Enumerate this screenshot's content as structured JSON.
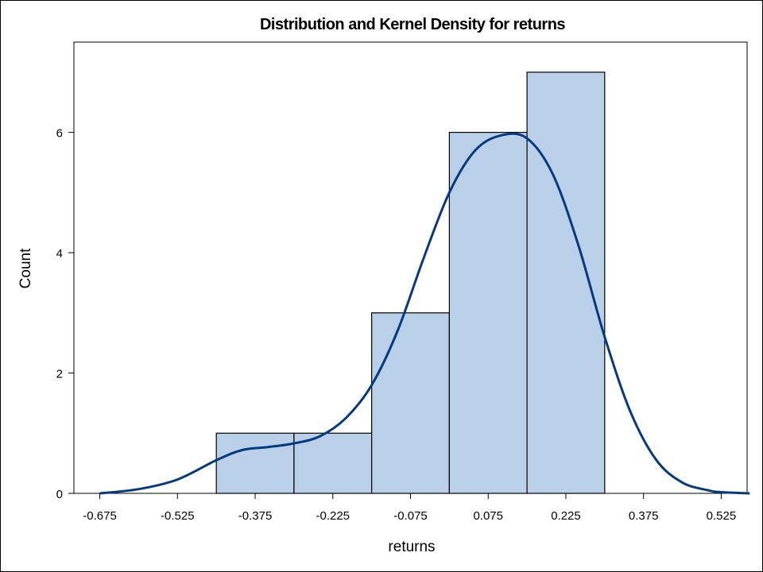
{
  "chart_data": {
    "type": "bar",
    "title": "Distribution and Kernel Density for returns",
    "xlabel": "returns",
    "ylabel": "Count",
    "xlim": [
      -0.725,
      0.575
    ],
    "ylim": [
      0,
      7.5
    ],
    "x_ticks": [
      "-0.675",
      "-0.525",
      "-0.375",
      "-0.225",
      "-0.075",
      "0.075",
      "0.225",
      "0.375",
      "0.525"
    ],
    "y_ticks": [
      "0",
      "2",
      "4",
      "6"
    ],
    "bins": [
      {
        "start": -0.45,
        "end": -0.3,
        "count": 1
      },
      {
        "start": -0.3,
        "end": -0.15,
        "count": 1
      },
      {
        "start": -0.15,
        "end": 0.0,
        "count": 3
      },
      {
        "start": 0.0,
        "end": 0.15,
        "count": 6
      },
      {
        "start": 0.15,
        "end": 0.3,
        "count": 7
      }
    ],
    "grid": false,
    "bar_color": "#bacfe8",
    "bar_edge_color": "#000000",
    "series": [
      {
        "type": "line",
        "x": [
          -0.675,
          -0.6,
          -0.525,
          -0.45,
          -0.4,
          -0.35,
          -0.3,
          -0.25,
          -0.2,
          -0.15,
          -0.1,
          -0.05,
          0.0,
          0.05,
          0.1,
          0.15,
          0.2,
          0.25,
          0.3,
          0.35,
          0.4,
          0.45,
          0.5,
          0.525,
          0.58
        ],
        "values": [
          0.0,
          0.07,
          0.23,
          0.55,
          0.72,
          0.77,
          0.83,
          0.95,
          1.25,
          1.8,
          2.7,
          3.9,
          5.0,
          5.7,
          5.95,
          5.9,
          5.3,
          4.1,
          2.6,
          1.35,
          0.55,
          0.18,
          0.05,
          0.02,
          0.0
        ],
        "color": "#053a82"
      }
    ]
  }
}
